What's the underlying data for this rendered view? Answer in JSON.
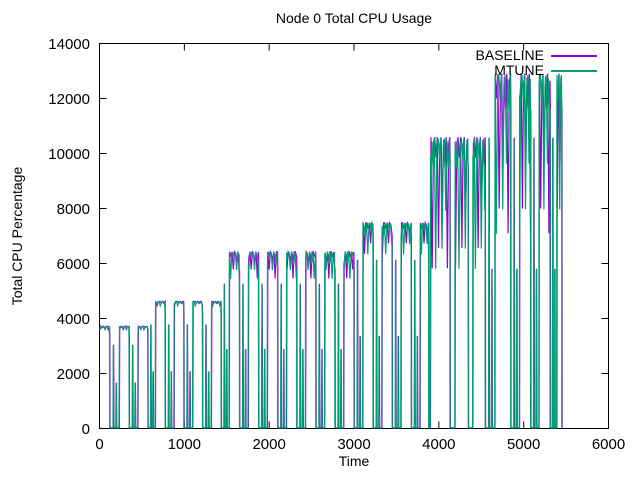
{
  "chart_data": {
    "type": "line",
    "title": "Node 0 Total CPU Usage",
    "xlabel": "Time",
    "ylabel": "Total CPU Percentage",
    "xlim": [
      0,
      6000
    ],
    "ylim": [
      0,
      14000
    ],
    "xticks": [
      0,
      1000,
      2000,
      3000,
      4000,
      5000,
      6000
    ],
    "yticks": [
      0,
      2000,
      4000,
      6000,
      8000,
      10000,
      12000,
      14000
    ],
    "grid": false,
    "legend_position": "top-right-inside",
    "series": [
      {
        "name": "BASELINE",
        "color": "#9400d3"
      },
      {
        "name": "MTUNE",
        "color": "#009e73"
      }
    ],
    "series_note": "BASELINE and MTUNE overlap almost exactly; MTUNE drawn on top",
    "waveform": {
      "baseline_value": 25,
      "gap_spike_fracs": [
        0.82,
        0.45
      ],
      "bursts": [
        {
          "start": 5,
          "end": 118,
          "high": 3700
        },
        {
          "start": 232,
          "end": 348,
          "high": 3700
        },
        {
          "start": 452,
          "end": 568,
          "high": 3700
        },
        {
          "start": 658,
          "end": 772,
          "high": 4600
        },
        {
          "start": 878,
          "end": 992,
          "high": 4600
        },
        {
          "start": 1098,
          "end": 1212,
          "high": 4600
        },
        {
          "start": 1318,
          "end": 1432,
          "high": 4600
        },
        {
          "start": 1528,
          "end": 1648,
          "high": 6400
        },
        {
          "start": 1753,
          "end": 1873,
          "high": 6400
        },
        {
          "start": 1978,
          "end": 2098,
          "high": 6400
        },
        {
          "start": 2203,
          "end": 2323,
          "high": 6400
        },
        {
          "start": 2428,
          "end": 2548,
          "high": 6400
        },
        {
          "start": 2653,
          "end": 2773,
          "high": 6400
        },
        {
          "start": 2878,
          "end": 2998,
          "high": 6400
        },
        {
          "start": 3103,
          "end": 3223,
          "high": 7450
        },
        {
          "start": 3328,
          "end": 3448,
          "high": 7450
        },
        {
          "start": 3553,
          "end": 3673,
          "high": 7450
        },
        {
          "start": 3778,
          "end": 3878,
          "high": 7450
        },
        {
          "start": 3900,
          "end": 4130,
          "high": 10550
        },
        {
          "start": 4190,
          "end": 4345,
          "high": 10550
        },
        {
          "start": 4400,
          "end": 4545,
          "high": 10550
        },
        {
          "start": 4660,
          "end": 4845,
          "high": 12850
        },
        {
          "start": 4950,
          "end": 5080,
          "high": 12850
        },
        {
          "start": 5180,
          "end": 5310,
          "high": 12850
        },
        {
          "start": 5390,
          "end": 5448,
          "high": 12850
        }
      ]
    }
  }
}
